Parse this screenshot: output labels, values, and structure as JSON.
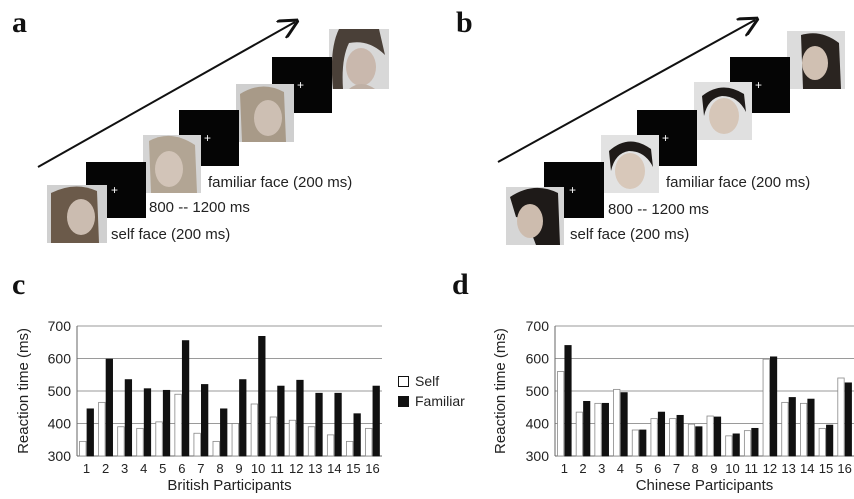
{
  "panels": {
    "a": "a",
    "b": "b",
    "c": "c",
    "d": "d"
  },
  "sequence": {
    "familiar_label": "familiar face (200 ms)",
    "interval_label": "800 -- 1200 ms",
    "self_label": "self face (200 ms)"
  },
  "legend": {
    "self": "Self",
    "familiar": "Familiar"
  },
  "colors": {
    "self": "#ffffff",
    "familiar": "#111111",
    "grid": "#9a9a9a",
    "axis": "#666666"
  },
  "chart_data": [
    {
      "type": "bar",
      "panel": "c",
      "xlabel": "British Participants",
      "ylabel": "Reaction time (ms)",
      "ylim": [
        300,
        700
      ],
      "yticks": [
        300,
        400,
        500,
        600,
        700
      ],
      "grid": true,
      "categories": [
        "1",
        "2",
        "3",
        "4",
        "5",
        "6",
        "7",
        "8",
        "9",
        "10",
        "11",
        "12",
        "13",
        "14",
        "15",
        "16"
      ],
      "series": [
        {
          "name": "Self",
          "values": [
            345,
            465,
            390,
            385,
            405,
            490,
            370,
            345,
            400,
            460,
            420,
            410,
            390,
            365,
            345,
            385
          ]
        },
        {
          "name": "Familiar",
          "values": [
            445,
            598,
            535,
            507,
            502,
            655,
            520,
            445,
            535,
            668,
            515,
            533,
            493,
            493,
            430,
            515
          ]
        }
      ]
    },
    {
      "type": "bar",
      "panel": "d",
      "xlabel": "Chinese Participants",
      "ylabel": "Reaction time (ms)",
      "ylim": [
        300,
        700
      ],
      "yticks": [
        300,
        400,
        500,
        600,
        700
      ],
      "grid": true,
      "categories": [
        "1",
        "2",
        "3",
        "4",
        "5",
        "6",
        "7",
        "8",
        "9",
        "10",
        "11",
        "12",
        "13",
        "14",
        "15",
        "16"
      ],
      "series": [
        {
          "name": "Self",
          "values": [
            560,
            435,
            462,
            505,
            380,
            415,
            415,
            398,
            423,
            362,
            378,
            598,
            465,
            462,
            385,
            540
          ]
        },
        {
          "name": "Familiar",
          "values": [
            640,
            468,
            462,
            495,
            380,
            435,
            425,
            390,
            420,
            368,
            385,
            605,
            480,
            475,
            395,
            525
          ]
        }
      ]
    }
  ]
}
